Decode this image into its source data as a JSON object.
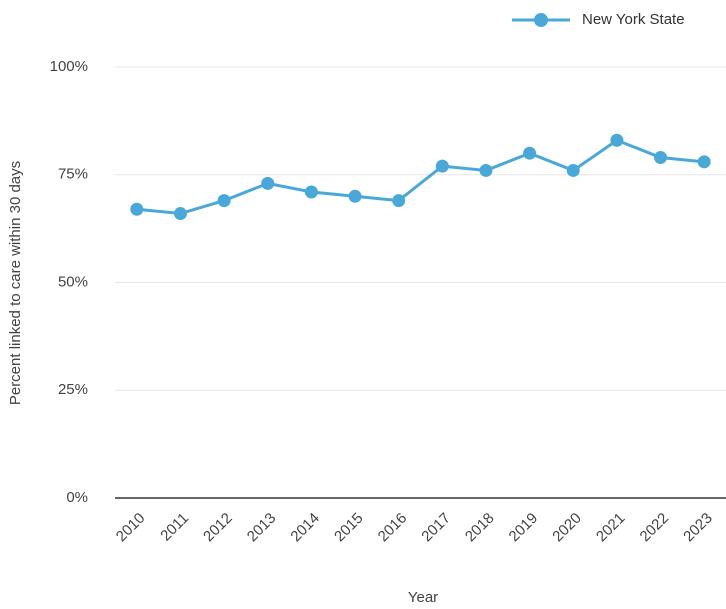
{
  "chart_data": {
    "type": "line",
    "x_label": "Year",
    "y_label": "Percent linked to care within 30 days",
    "categories": [
      "2010",
      "2011",
      "2012",
      "2013",
      "2014",
      "2015",
      "2016",
      "2017",
      "2018",
      "2019",
      "2020",
      "2021",
      "2022",
      "2023"
    ],
    "series": [
      {
        "name": "New York State",
        "color": "#4aa8d8",
        "values": [
          67,
          66,
          69,
          73,
          71,
          70,
          69,
          77,
          76,
          80,
          76,
          83,
          79,
          78
        ]
      }
    ],
    "ylim": [
      0,
      100
    ],
    "yticks": [
      {
        "value": 0,
        "label": "0%"
      },
      {
        "value": 25,
        "label": "25%"
      },
      {
        "value": 50,
        "label": "50%"
      },
      {
        "value": 75,
        "label": "75%"
      },
      {
        "value": 100,
        "label": "100%"
      }
    ],
    "grid": true,
    "legend": "top-right"
  }
}
